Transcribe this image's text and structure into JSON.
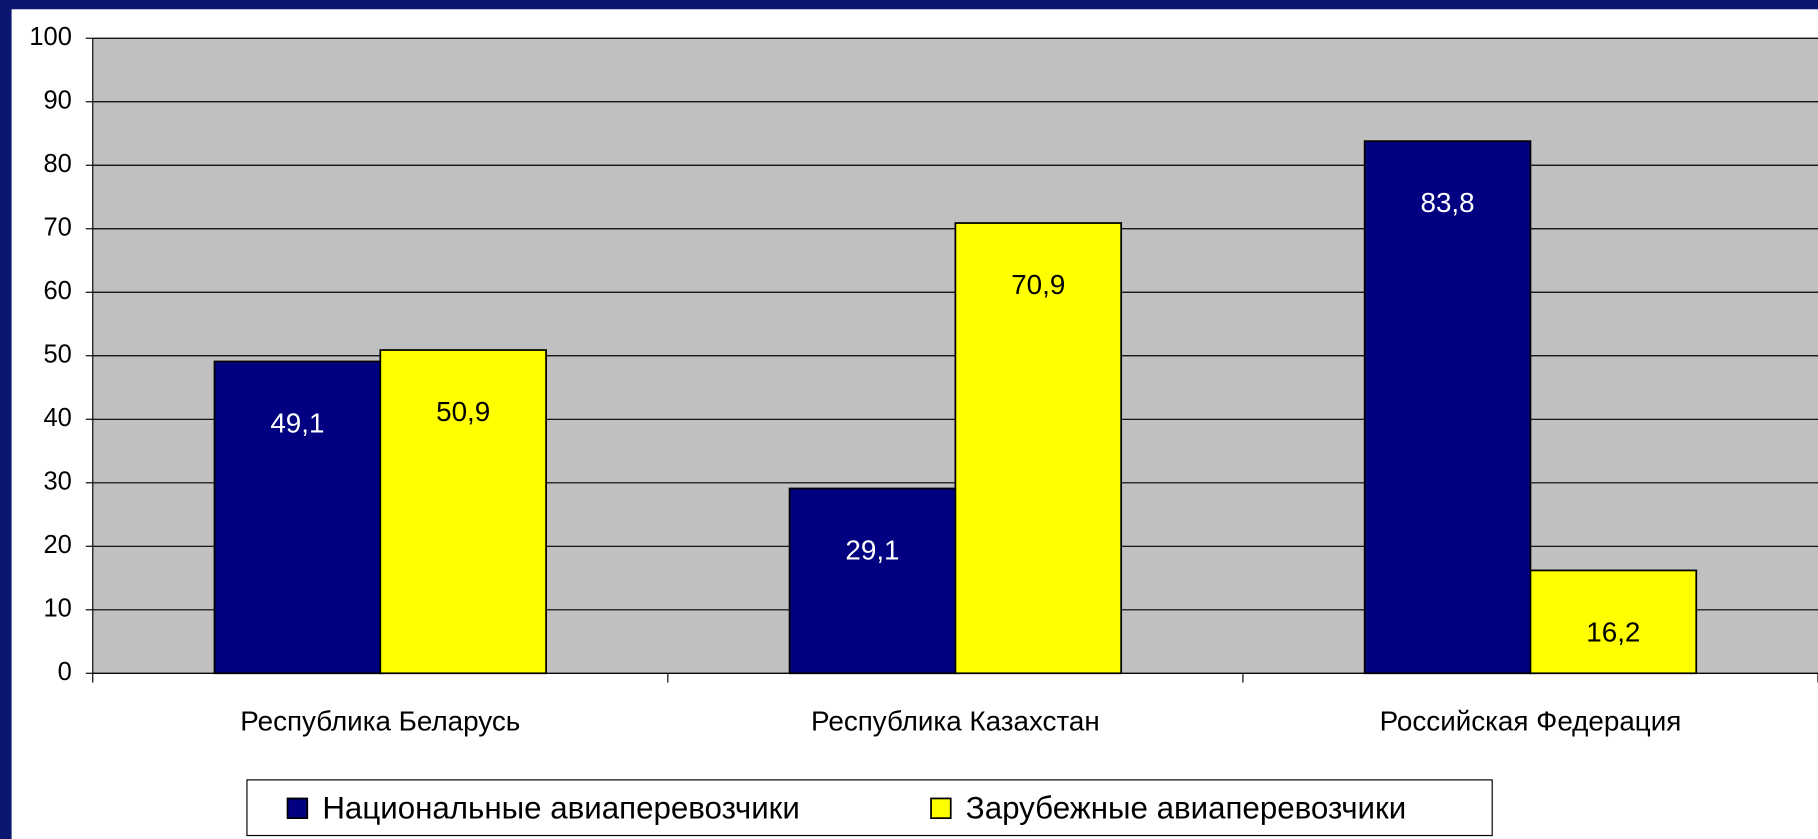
{
  "chart_data": {
    "type": "bar",
    "categories": [
      "Республика Беларусь",
      "Республика Казахстан",
      "Российская Федерация"
    ],
    "series": [
      {
        "name": "Национальные авиаперевозчики",
        "color": "#000080",
        "values": [
          49.1,
          29.1,
          83.8
        ],
        "value_labels": [
          "49,1",
          "29,1",
          "83,8"
        ]
      },
      {
        "name": "Зарубежные авиаперевозчики",
        "color": "#ffff00",
        "values": [
          50.9,
          70.9,
          16.2
        ],
        "value_labels": [
          "50,9",
          "70,9",
          "16,2"
        ]
      }
    ],
    "ylim": [
      0,
      100
    ],
    "yticks": [
      0,
      10,
      20,
      30,
      40,
      50,
      60,
      70,
      80,
      90,
      100
    ],
    "grid": true,
    "legend": "bottom"
  }
}
